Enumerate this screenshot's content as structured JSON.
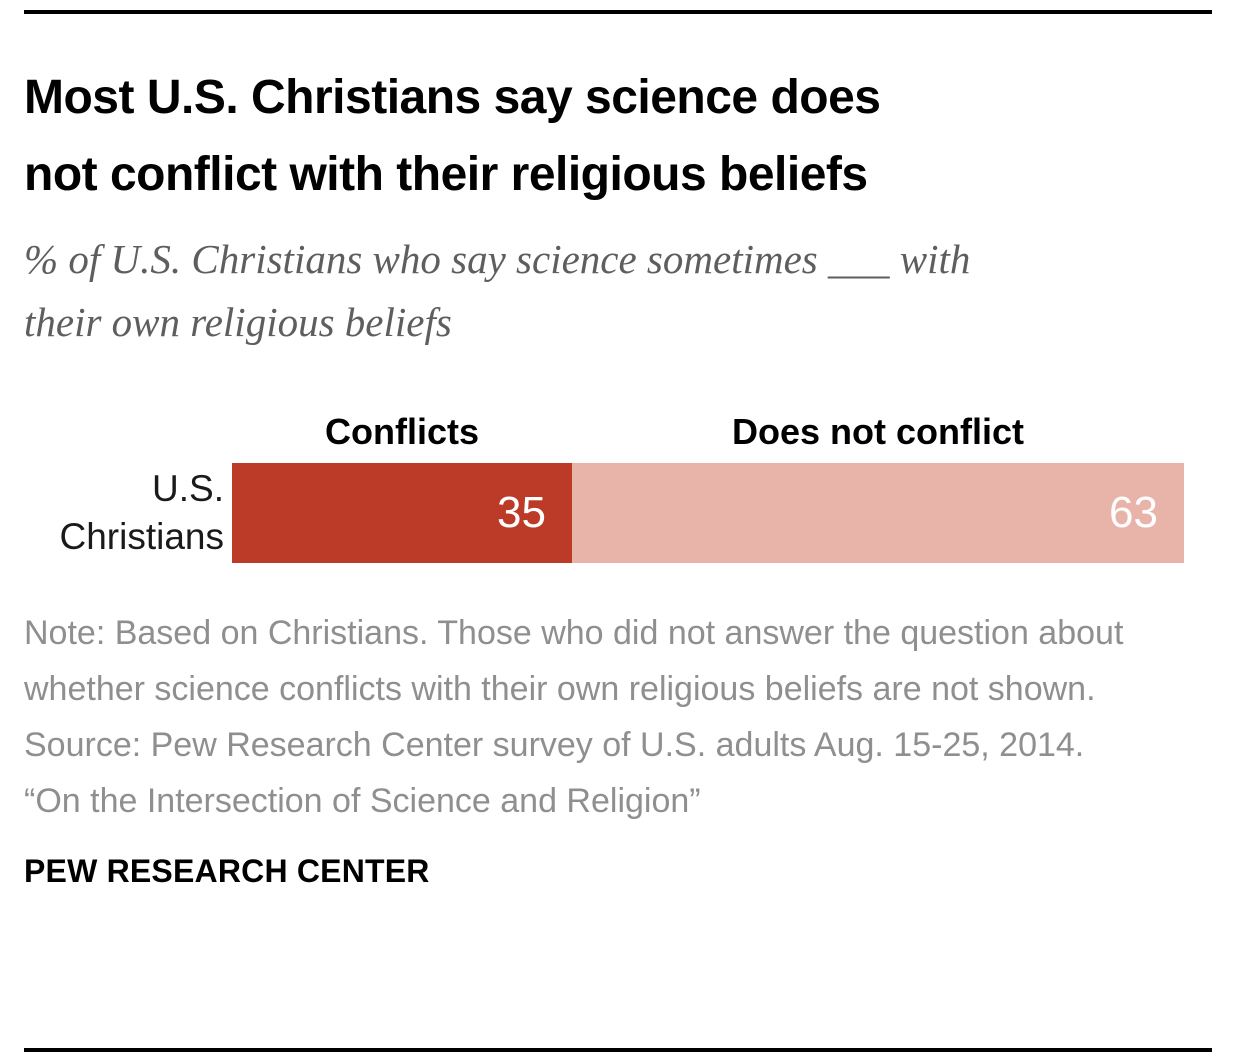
{
  "header": {
    "title_lines": [
      "Most U.S. Christians say science does",
      "not conflict with their religious beliefs"
    ],
    "subtitle_lines": [
      "% of U.S. Christians who say science sometimes ___ with",
      "their own religious beliefs"
    ]
  },
  "chart_data": {
    "type": "bar",
    "variant": "horizontal_stacked",
    "title": "Most U.S. Christians say science does not conflict with their religious beliefs",
    "subtitle": "% of U.S. Christians who say science sometimes ___ with their own religious beliefs",
    "categories": [
      "U.S. Christians"
    ],
    "series": [
      {
        "name": "Conflicts",
        "values": [
          35
        ],
        "color": "#bc3b28",
        "value_label_color": "#ffffff"
      },
      {
        "name": "Does not conflict",
        "values": [
          63
        ],
        "color": "#e8b3a9",
        "value_label_color": "#ffffff"
      }
    ],
    "x_range": [
      0,
      100
    ],
    "grid": false,
    "legend_position": "above-segments",
    "value_labels": "inside-right"
  },
  "notes": {
    "note": "Note: Based on Christians. Those who did not answer the question about whether science conflicts with their own religious beliefs are not shown.",
    "source": "Source: Pew Research Center survey of U.S. adults Aug. 15-25, 2014.",
    "report_title": "“On the Intersection of Science and Religion”"
  },
  "footer": {
    "brand": "PEW RESEARCH CENTER"
  }
}
